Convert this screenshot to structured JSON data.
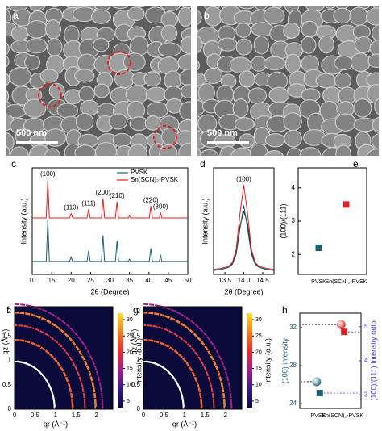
{
  "chart_data": [
    {
      "type": "image",
      "panel": "a",
      "scale_bar": "500 nm"
    },
    {
      "type": "image",
      "panel": "b",
      "scale_bar": "500 nm"
    },
    {
      "type": "line",
      "panel": "c",
      "xlabel": "2θ (Degree)",
      "ylabel": "Intensity (a.u.)",
      "xlim": [
        10,
        50
      ],
      "xticks": [
        10,
        15,
        20,
        25,
        30,
        35,
        40,
        45,
        50
      ],
      "ylim": [
        10,
        108
      ],
      "x": [
        10,
        12,
        13.6,
        14.0,
        14.4,
        16,
        19.6,
        20.0,
        20.4,
        22,
        24.1,
        24.5,
        24.9,
        26,
        27.8,
        28.2,
        28.6,
        30,
        31.4,
        31.8,
        32.2,
        34,
        34.7,
        35.0,
        35.3,
        38,
        40.1,
        40.5,
        40.9,
        42,
        42.7,
        43.0,
        43.3,
        46,
        50
      ],
      "series": [
        {
          "name": "PVSK",
          "color": "#1d5f74",
          "values": [
            22,
            22,
            22,
            60,
            22,
            22,
            22,
            26,
            22,
            22,
            22,
            32,
            22,
            22,
            22,
            46,
            22,
            22,
            22,
            41,
            22,
            22,
            22,
            24,
            22,
            22,
            22,
            34,
            22,
            22,
            22,
            28,
            22,
            22,
            22
          ]
        },
        {
          "name": "Sn(SCN)₂-PVSK",
          "color": "#e02020",
          "values": [
            62,
            62,
            62,
            97,
            62,
            62,
            62,
            66,
            62,
            62,
            62,
            70,
            62,
            62,
            62,
            80,
            62,
            62,
            62,
            77,
            62,
            62,
            62,
            64,
            62,
            62,
            62,
            73,
            62,
            62,
            62,
            67,
            62,
            62,
            62
          ]
        }
      ],
      "annotations": [
        {
          "text": "(100)",
          "x": 14.0
        },
        {
          "text": "(110)",
          "x": 20.0
        },
        {
          "text": "(111)",
          "x": 24.5
        },
        {
          "text": "(200)",
          "x": 28.2
        },
        {
          "text": "(210)",
          "x": 31.8
        },
        {
          "text": "(220)",
          "x": 40.5
        },
        {
          "text": "(300)",
          "x": 43.0
        }
      ],
      "legend": "upper right"
    },
    {
      "type": "line",
      "panel": "d",
      "xlabel": "2θ (Degree)",
      "ylabel": "Intensity (a.u.)",
      "xlim": [
        13.2,
        14.8
      ],
      "xticks": [
        13.5,
        {
          "value": 14,
          "label": "14.0"
        },
        14.5
      ],
      "ylim": [
        0,
        105
      ],
      "x": [
        13.2,
        13.4,
        13.6,
        13.7,
        13.8,
        13.9,
        14.0,
        14.1,
        14.2,
        14.3,
        14.4,
        14.6,
        14.8
      ],
      "series": [
        {
          "color": "#222222",
          "values": [
            4,
            5,
            7,
            11,
            22,
            48,
            62,
            50,
            22,
            11,
            7,
            5,
            4
          ]
        },
        {
          "color": "#1d5f74",
          "values": [
            4,
            5,
            7,
            10,
            20,
            45,
            68,
            45,
            20,
            10,
            7,
            5,
            4
          ]
        },
        {
          "color": "#e02020",
          "values": [
            5,
            6,
            8,
            12,
            25,
            60,
            88,
            60,
            25,
            12,
            8,
            6,
            5
          ]
        }
      ],
      "annotations": [
        {
          "text": "(100)",
          "x": 14.0
        }
      ]
    },
    {
      "type": "scatter",
      "panel": "e",
      "ylabel": "(100)/(111)",
      "categories": [
        "PVSK",
        "Sn(SCN)₂-PVSK"
      ],
      "values": [
        2.2,
        3.5
      ],
      "colors": [
        "#1d5f74",
        "#e02020"
      ],
      "ylim": [
        1.4,
        4.6
      ],
      "yticks": [
        2,
        3,
        4
      ]
    },
    {
      "type": "heatmap",
      "panel": "f",
      "xlabel": "qr (Å⁻¹)",
      "ylabel": "qz (Å⁻¹)",
      "xlim": [
        0,
        2.4
      ],
      "ylim": [
        0,
        2.1
      ],
      "xticks": [
        0,
        0.5,
        1,
        1.5,
        2
      ],
      "yticks": [
        0,
        0.5,
        1,
        1.5,
        2
      ],
      "colorbar": {
        "label": "Intensity (a.u.)",
        "lim": [
          3,
          32
        ],
        "ticks": [
          5,
          10,
          15,
          20,
          25,
          30
        ],
        "colors": [
          "#0b0b3b",
          "#3b1a8a",
          "#a0208a",
          "#e03030",
          "#f08020",
          "#f8e030"
        ]
      }
    },
    {
      "type": "heatmap",
      "panel": "g",
      "xlabel": "qr (Å⁻¹)",
      "ylabel": "qz (Å⁻¹)",
      "xlim": [
        0,
        2.4
      ],
      "ylim": [
        0,
        2.1
      ],
      "xticks": [
        0,
        0.5,
        1,
        1.5,
        2
      ],
      "yticks": [
        0,
        0.5,
        1,
        1.5,
        2
      ],
      "colorbar": {
        "label": "Intensity (a.u.)",
        "lim": [
          3,
          32
        ],
        "ticks": [
          5,
          10,
          15,
          20,
          25,
          30
        ],
        "colors": [
          "#0b0b3b",
          "#3b1a8a",
          "#a0208a",
          "#e03030",
          "#f08020",
          "#f8e030"
        ]
      }
    },
    {
      "type": "dual",
      "panel": "h",
      "categories": [
        "PVSK",
        "Sn(SCN)₂-PVSK"
      ],
      "ylabel": "(100) intensity",
      "y2label": "(100)/(111) Intensity ratio",
      "ylim": [
        23.5,
        33.5
      ],
      "yticks": [
        24,
        28,
        32
      ],
      "y2lim": [
        2.6,
        5.4
      ],
      "y2ticks": [
        3,
        4,
        5
      ],
      "ycolor": "#1d5f74",
      "y2color": "#3a3ad0",
      "series": [
        {
          "marker": "sphere",
          "colors": [
            "#1d6b85",
            "#e02020"
          ],
          "values": [
            26.3,
            32.3
          ]
        },
        {
          "marker": "square",
          "axis": "y2",
          "colors": [
            "#1d5f74",
            "#e02020"
          ],
          "values": [
            3.05,
            4.85
          ]
        }
      ]
    }
  ]
}
